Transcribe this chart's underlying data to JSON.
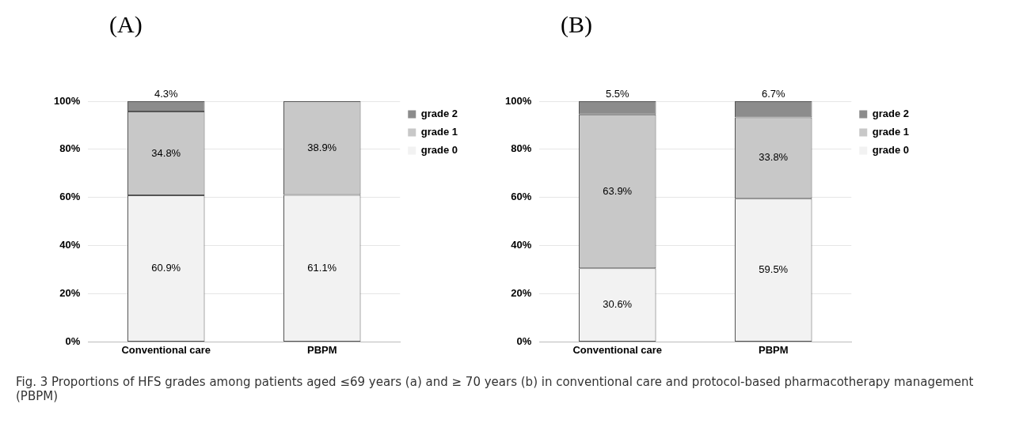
{
  "chart_data": [
    {
      "type": "bar",
      "title": "(A)",
      "categories": [
        "Conventional care",
        "PBPM"
      ],
      "stacked": true,
      "ylim": [
        0,
        100
      ],
      "yticks": [
        {
          "value": 0,
          "label": "0%"
        },
        {
          "value": 20,
          "label": "20%"
        },
        {
          "value": 40,
          "label": "40%"
        },
        {
          "value": 60,
          "label": "60%"
        },
        {
          "value": 80,
          "label": "80%"
        },
        {
          "value": 100,
          "label": "100%"
        }
      ],
      "grid": "y",
      "legend": "right",
      "series": [
        {
          "name": "grade 0",
          "color": "#f2f2f2",
          "values": [
            60.9,
            61.1
          ],
          "value_labels": [
            "60.9%",
            "61.1%"
          ]
        },
        {
          "name": "grade 1",
          "color": "#c8c8c8",
          "values": [
            34.8,
            38.9
          ],
          "value_labels": [
            "34.8%",
            "38.9%"
          ]
        },
        {
          "name": "grade 2",
          "color": "#8c8c8c",
          "values": [
            4.3,
            0
          ],
          "value_labels": [
            "4.3%",
            null
          ]
        }
      ],
      "annotations": [
        "Fig. 3 Proportions of HFS grades among patients aged ≤69 years (a) and ≥ 70 years (b) in conventional care and protocol-based pharmacotherapy management (PBPM)"
      ]
    },
    {
      "type": "bar",
      "title": "(B)",
      "categories": [
        "Conventional care",
        "PBPM"
      ],
      "stacked": true,
      "ylim": [
        0,
        100
      ],
      "yticks": [
        {
          "value": 0,
          "label": "0%"
        },
        {
          "value": 20,
          "label": "20%"
        },
        {
          "value": 40,
          "label": "40%"
        },
        {
          "value": 60,
          "label": "60%"
        },
        {
          "value": 80,
          "label": "80%"
        },
        {
          "value": 100,
          "label": "100%"
        }
      ],
      "grid": "y",
      "legend": "right",
      "series": [
        {
          "name": "grade 0",
          "color": "#f2f2f2",
          "values": [
            30.6,
            59.5
          ],
          "value_labels": [
            "30.6%",
            "59.5%"
          ]
        },
        {
          "name": "grade 1",
          "color": "#c8c8c8",
          "values": [
            63.9,
            33.8
          ],
          "value_labels": [
            "63.9%",
            "33.8%"
          ]
        },
        {
          "name": "grade 2",
          "color": "#8c8c8c",
          "values": [
            5.5,
            6.7
          ],
          "value_labels": [
            "5.5%",
            "6.7%"
          ]
        }
      ]
    }
  ]
}
